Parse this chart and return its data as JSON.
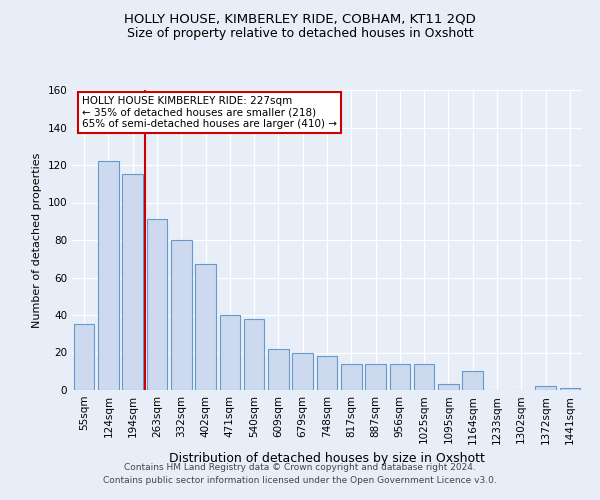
{
  "title1": "HOLLY HOUSE, KIMBERLEY RIDE, COBHAM, KT11 2QD",
  "title2": "Size of property relative to detached houses in Oxshott",
  "xlabel": "Distribution of detached houses by size in Oxshott",
  "ylabel": "Number of detached properties",
  "categories": [
    "55sqm",
    "124sqm",
    "194sqm",
    "263sqm",
    "332sqm",
    "402sqm",
    "471sqm",
    "540sqm",
    "609sqm",
    "679sqm",
    "748sqm",
    "817sqm",
    "887sqm",
    "956sqm",
    "1025sqm",
    "1095sqm",
    "1164sqm",
    "1233sqm",
    "1302sqm",
    "1372sqm",
    "1441sqm"
  ],
  "values": [
    35,
    122,
    115,
    91,
    80,
    67,
    40,
    38,
    22,
    20,
    18,
    14,
    14,
    14,
    14,
    3,
    10,
    0,
    0,
    2,
    1
  ],
  "bar_color": "#ccd9ee",
  "bar_edge_color": "#6699cc",
  "vline_x_index": 2.5,
  "vline_color": "#cc0000",
  "annotation_text": "HOLLY HOUSE KIMBERLEY RIDE: 227sqm\n← 35% of detached houses are smaller (218)\n65% of semi-detached houses are larger (410) →",
  "annotation_box_color": "#ffffff",
  "annotation_box_edge": "#cc0000",
  "ylim": [
    0,
    160
  ],
  "yticks": [
    0,
    20,
    40,
    60,
    80,
    100,
    120,
    140,
    160
  ],
  "footer1": "Contains HM Land Registry data © Crown copyright and database right 2024.",
  "footer2": "Contains public sector information licensed under the Open Government Licence v3.0.",
  "bg_color": "#e8eef8",
  "plot_bg_color": "#e8eef8",
  "title1_fontsize": 9.5,
  "title2_fontsize": 9,
  "ylabel_fontsize": 8,
  "xlabel_fontsize": 9,
  "tick_fontsize": 7.5,
  "footer_fontsize": 6.5,
  "annot_fontsize": 7.5
}
